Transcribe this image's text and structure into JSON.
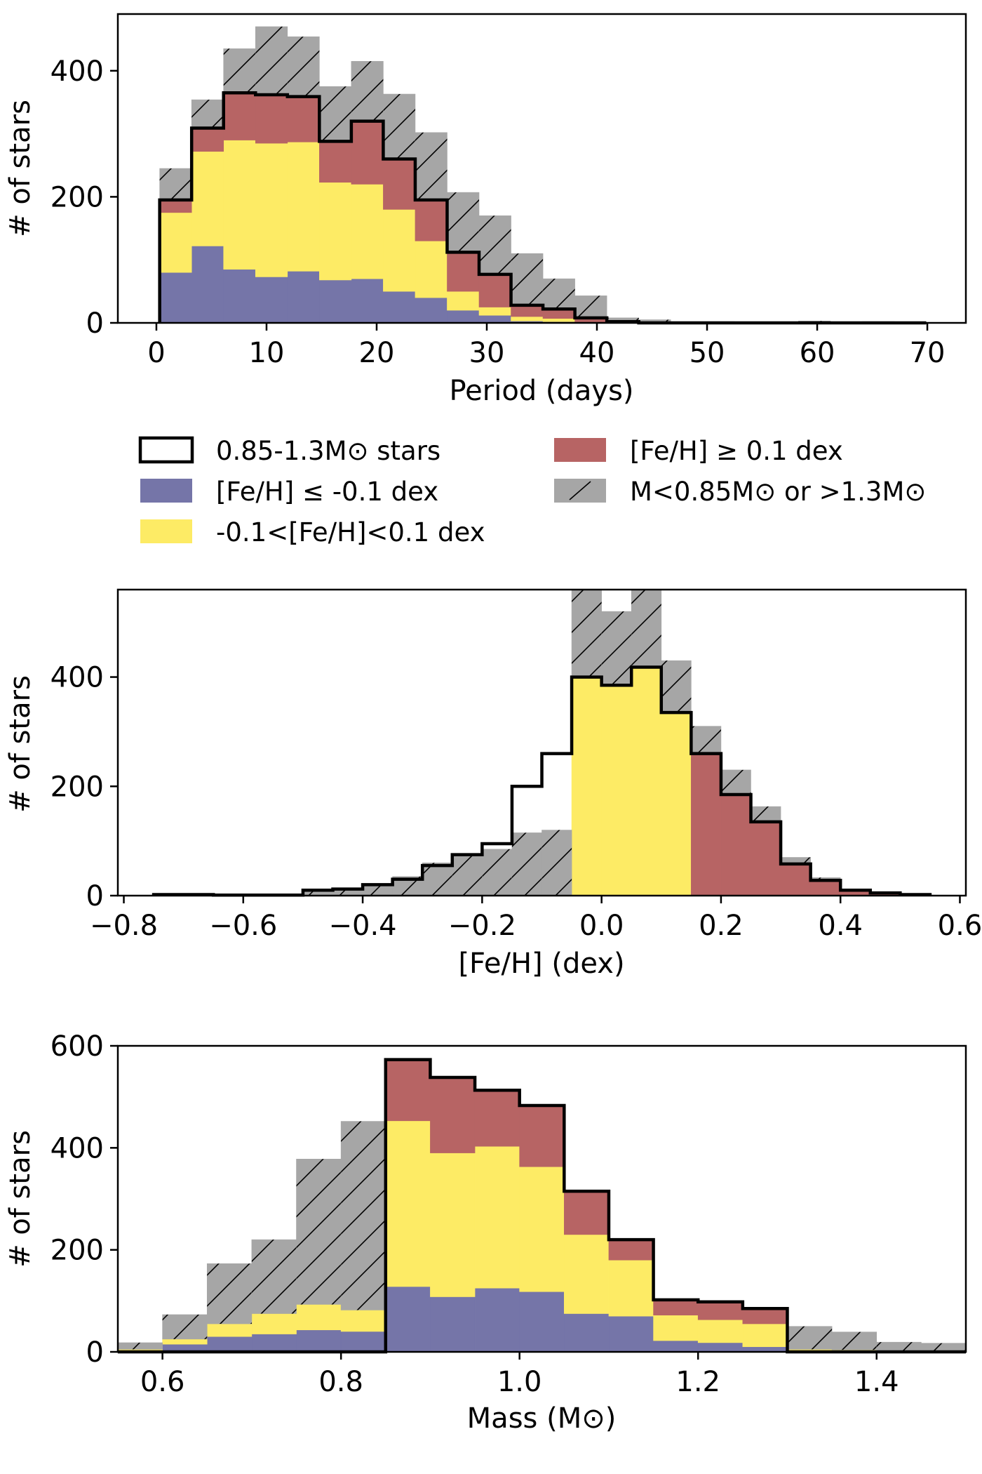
{
  "colors": {
    "low_feh": "#7575a8",
    "mid_feh": "#fdeb65",
    "high_feh": "#b76464",
    "outside_mass": "#a6a6a6",
    "axis": "#000000"
  },
  "legend": {
    "entries": [
      {
        "key": "outline",
        "label": "0.85-1.3M⊙ stars"
      },
      {
        "key": "high",
        "label": "[Fe/H] ≥ 0.1 dex"
      },
      {
        "key": "low",
        "label": "[Fe/H] ≤ -0.1 dex"
      },
      {
        "key": "outside",
        "label": "M<0.85M⊙ or >1.3M⊙"
      },
      {
        "key": "mid",
        "label": "-0.1<[Fe/H]<0.1 dex"
      }
    ]
  },
  "chart_data": [
    {
      "type": "bar",
      "title": "",
      "xlabel": "Period (days)",
      "ylabel": "# of stars",
      "xlim": [
        -3.5,
        73.5
      ],
      "ylim": [
        0,
        490
      ],
      "xticks": [
        0,
        10,
        20,
        30,
        40,
        50,
        60,
        70
      ],
      "yticks": [
        0,
        200,
        400
      ],
      "bin_edges": [
        0.3,
        3.2,
        6.1,
        9.0,
        11.9,
        14.8,
        17.7,
        20.6,
        23.5,
        26.4,
        29.3,
        32.2,
        35.1,
        38.0,
        40.9,
        43.8,
        46.7,
        49.6,
        52.5,
        55.4,
        58.3,
        61.2,
        64.1,
        67.0,
        69.9
      ],
      "series": [
        {
          "name": "[Fe/H] ≤ -0.1 dex",
          "key": "low",
          "values": [
            80,
            122,
            85,
            73,
            82,
            68,
            70,
            50,
            40,
            20,
            12,
            3,
            2,
            0,
            0,
            0,
            0,
            0,
            0,
            0,
            0,
            0,
            0,
            0
          ]
        },
        {
          "name": "-0.1<[Fe/H]<0.1 dex",
          "key": "mid",
          "values": [
            95,
            150,
            205,
            212,
            205,
            155,
            150,
            130,
            90,
            30,
            13,
            7,
            5,
            0,
            0,
            0,
            0,
            0,
            0,
            0,
            0,
            0,
            0,
            0
          ]
        },
        {
          "name": "[Fe/H] ≥ 0.1 dex",
          "key": "high",
          "values": [
            20,
            37,
            75,
            77,
            72,
            65,
            100,
            80,
            65,
            62,
            52,
            18,
            15,
            8,
            2,
            0,
            0,
            0,
            0,
            0,
            0,
            0,
            0,
            0
          ]
        },
        {
          "name": "M<0.85M⊙ or >1.3M⊙",
          "key": "outside",
          "values": [
            50,
            45,
            70,
            108,
            95,
            87,
            95,
            103,
            107,
            95,
            93,
            82,
            48,
            35,
            6,
            5,
            2,
            2,
            1,
            1,
            3,
            1,
            2,
            1
          ]
        }
      ],
      "outline": {
        "name": "0.85-1.3M⊙ stars",
        "values": [
          195,
          309,
          365,
          362,
          359,
          288,
          320,
          260,
          195,
          112,
          77,
          28,
          22,
          8,
          2,
          0,
          0,
          0,
          0,
          0,
          0,
          0,
          0,
          0
        ]
      }
    },
    {
      "type": "bar",
      "title": "",
      "xlabel": "[Fe/H] (dex)",
      "ylabel": "# of stars",
      "xlim": [
        -0.81,
        0.61
      ],
      "ylim": [
        0,
        560
      ],
      "xticks": [
        -0.8,
        -0.6,
        -0.4,
        -0.2,
        0.0,
        0.2,
        0.4,
        0.6
      ],
      "xtick_labels": [
        "−0.8",
        "−0.6",
        "−0.4",
        "−0.2",
        "0.0",
        "0.2",
        "0.4",
        "0.6"
      ],
      "yticks": [
        0,
        200,
        400
      ],
      "bin_edges": [
        -0.75,
        -0.7,
        -0.65,
        -0.6,
        -0.55,
        -0.5,
        -0.45,
        -0.4,
        -0.35,
        -0.3,
        -0.25,
        -0.2,
        -0.15,
        -0.1,
        -0.05,
        0.0,
        0.05,
        0.1,
        0.15,
        0.2,
        0.25,
        0.3,
        0.35,
        0.4,
        0.45,
        0.5,
        0.55
      ],
      "series": [
        {
          "name": "[Fe/H] ≤ -0.1 dex",
          "key": "low",
          "values": [
            0,
            0,
            0,
            0,
            0,
            0,
            0,
            0,
            0,
            0,
            0,
            0,
            0,
            0,
            0,
            0,
            0,
            0,
            0,
            0,
            0,
            0,
            0,
            0,
            0,
            0
          ]
        },
        {
          "name": "-0.1<[Fe/H]<0.1 dex",
          "key": "mid",
          "values": [
            0,
            0,
            0,
            0,
            0,
            0,
            0,
            0,
            0,
            0,
            0,
            0,
            0,
            0,
            400,
            385,
            418,
            335,
            0,
            0,
            0,
            0,
            0,
            0,
            0,
            0
          ]
        },
        {
          "name": "[Fe/H] ≥ 0.1 dex",
          "key": "high",
          "values": [
            0,
            0,
            0,
            0,
            0,
            0,
            0,
            0,
            0,
            0,
            0,
            0,
            0,
            0,
            0,
            0,
            0,
            0,
            260,
            185,
            135,
            58,
            28,
            10,
            5,
            2
          ]
        },
        {
          "name": "M<0.85M⊙ or >1.3M⊙",
          "key": "outside",
          "values": [
            3,
            3,
            2,
            2,
            2,
            8,
            10,
            20,
            35,
            60,
            75,
            85,
            115,
            120,
            175,
            135,
            142,
            95,
            50,
            45,
            28,
            12,
            5,
            2,
            1,
            1
          ]
        }
      ],
      "outline": {
        "name": "0.85-1.3M⊙ stars",
        "values": [
          2,
          2,
          1,
          1,
          1,
          10,
          12,
          20,
          30,
          55,
          75,
          95,
          200,
          260,
          400,
          385,
          418,
          335,
          260,
          185,
          135,
          58,
          28,
          10,
          5,
          2
        ]
      }
    },
    {
      "type": "bar",
      "title": "",
      "xlabel": "Mass (M⊙)",
      "ylabel": "# of stars",
      "xlim": [
        0.55,
        1.5
      ],
      "ylim": [
        0,
        600
      ],
      "xticks": [
        0.6,
        0.8,
        1.0,
        1.2,
        1.4
      ],
      "xtick_labels": [
        "0.6",
        "0.8",
        "1.0",
        "1.2",
        "1.4"
      ],
      "yticks": [
        0,
        200,
        400,
        600
      ],
      "bin_edges": [
        0.55,
        0.6,
        0.65,
        0.7,
        0.75,
        0.8,
        0.85,
        0.9,
        0.95,
        1.0,
        1.05,
        1.1,
        1.15,
        1.2,
        1.25,
        1.3,
        1.35,
        1.4,
        1.45,
        1.5
      ],
      "series": [
        {
          "name": "[Fe/H] ≤ -0.1 dex",
          "key": "low",
          "values": [
            3,
            15,
            30,
            35,
            43,
            40,
            128,
            108,
            125,
            118,
            75,
            70,
            22,
            18,
            10,
            2,
            2,
            1,
            1
          ]
        },
        {
          "name": "-0.1<[Fe/H]<0.1 dex",
          "key": "mid",
          "values": [
            2,
            10,
            25,
            40,
            50,
            42,
            325,
            282,
            278,
            245,
            155,
            110,
            50,
            45,
            45,
            3,
            2,
            1,
            1
          ]
        },
        {
          "name": "[Fe/H] ≥ 0.1 dex",
          "key": "high",
          "values": [
            0,
            0,
            0,
            0,
            0,
            0,
            120,
            148,
            110,
            120,
            85,
            40,
            30,
            35,
            30,
            0,
            0,
            0,
            0
          ]
        },
        {
          "name": "M<0.85M⊙ or >1.3M⊙",
          "key": "outside",
          "values": [
            13,
            48,
            118,
            145,
            285,
            370,
            0,
            0,
            0,
            0,
            0,
            0,
            0,
            0,
            0,
            45,
            35,
            17,
            15
          ]
        }
      ],
      "outline": {
        "name": "0.85-1.3M⊙ stars",
        "values": [
          0,
          0,
          0,
          0,
          0,
          0,
          573,
          538,
          513,
          483,
          315,
          220,
          102,
          98,
          85,
          0,
          0,
          0,
          0
        ]
      }
    }
  ]
}
